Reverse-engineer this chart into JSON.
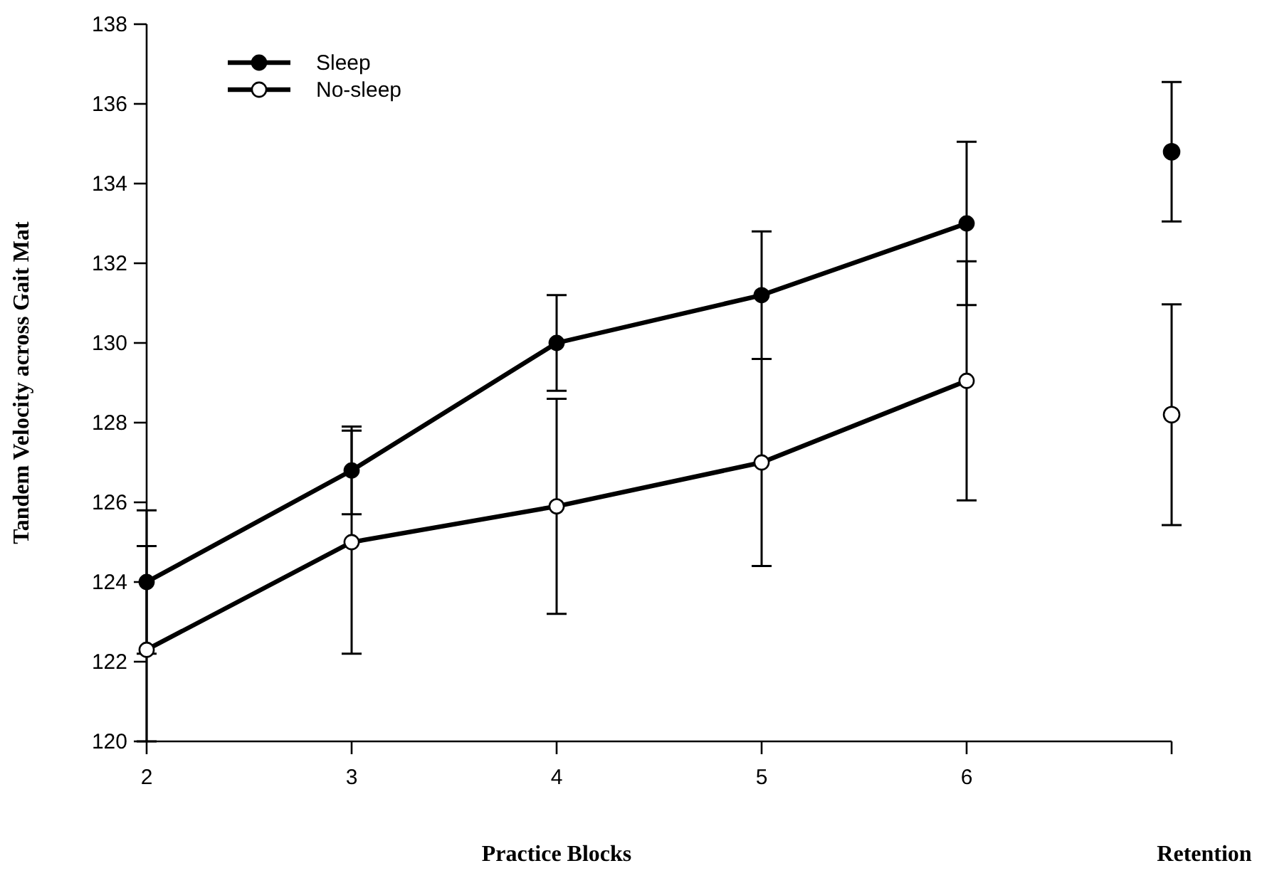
{
  "chart_data": {
    "type": "line",
    "xlabel": "Practice Blocks",
    "ylabel": "Tandem Velocity across Gait Mat",
    "annotations": [
      "Retention"
    ],
    "xlim": [
      2,
      7
    ],
    "xticks": [
      2,
      3,
      4,
      5,
      6,
      {
        "value": 7,
        "label": null
      }
    ],
    "ylim": [
      120,
      138
    ],
    "yticks": [
      120,
      122,
      124,
      126,
      128,
      130,
      132,
      134,
      136,
      138
    ],
    "marker": "circle",
    "legend": "top left",
    "grid": false,
    "series": [
      {
        "name": "Sleep",
        "color": "#000000",
        "x": [
          2,
          3,
          4,
          5,
          6
        ],
        "values": [
          124.0,
          126.8,
          130.0,
          131.2,
          133.0
        ],
        "errors": [
          1.8,
          1.1,
          1.2,
          1.6,
          2.05
        ]
      },
      {
        "name": "No-sleep",
        "color": "#000000",
        "x": [
          2,
          3,
          4,
          5,
          6
        ],
        "values": [
          122.3,
          125.0,
          125.9,
          127.0,
          129.05
        ],
        "errors": [
          [
            120,
            124.9
          ],
          2.8,
          2.7,
          2.6,
          3.0
        ]
      },
      {
        "type": "scatter",
        "color": "#000000",
        "x": [
          7
        ],
        "values": [
          134.8
        ],
        "errors": [
          1.75
        ]
      },
      {
        "type": "scatter",
        "color": "#000000",
        "x": [
          7
        ],
        "values": [
          128.2
        ],
        "errors": [
          2.77
        ]
      }
    ]
  }
}
